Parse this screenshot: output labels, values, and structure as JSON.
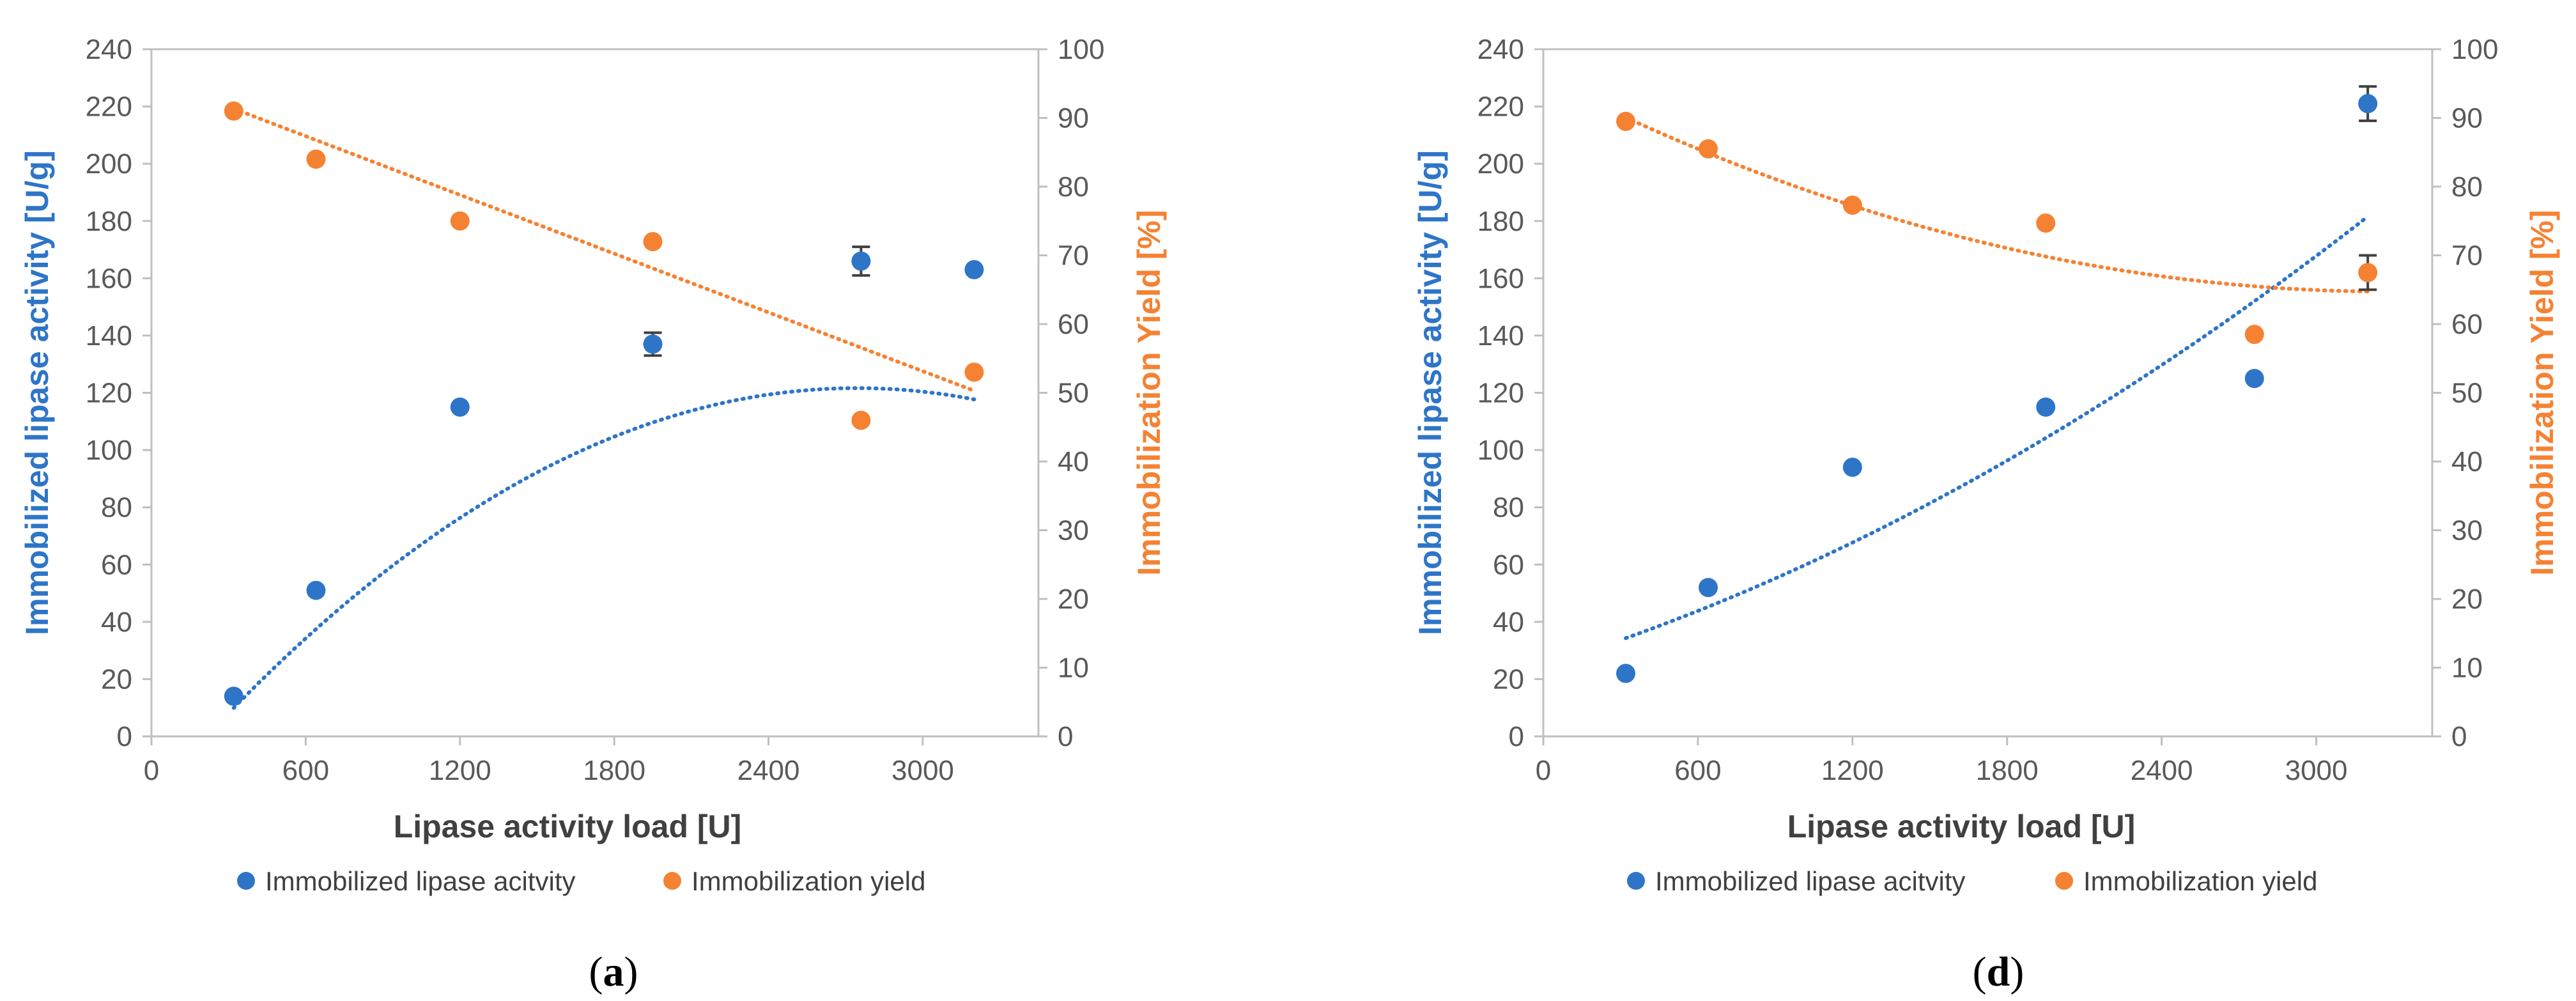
{
  "colors": {
    "blue": "#2E75C8",
    "orange": "#F58233",
    "axis": "#BFBFBF",
    "error": "#404040",
    "text": "#595959"
  },
  "chart_data": [
    {
      "type": "scatter",
      "panel_label": "a",
      "xlabel": "Lipase activity load [U]",
      "ylabel": "Immobilized lipase activity [U/g]",
      "y2label": "Immobilization Yield [%]",
      "xlim": [
        0,
        3450
      ],
      "ylim": [
        0,
        240
      ],
      "y2lim": [
        0,
        100
      ],
      "xticks": [
        0,
        600,
        1200,
        1800,
        2400,
        3000
      ],
      "yticks": [
        0,
        20,
        40,
        60,
        80,
        100,
        120,
        140,
        160,
        180,
        200,
        220,
        240
      ],
      "y2ticks": [
        0,
        10,
        20,
        30,
        40,
        50,
        60,
        70,
        80,
        90,
        100
      ],
      "legend": [
        "Immobilized lipase acitvity",
        "Immobilization yield"
      ],
      "series": [
        {
          "name": "Immobilized lipase acitvity",
          "axis": "left",
          "x": [
            320,
            640,
            1200,
            1950,
            2760,
            3200
          ],
          "y": [
            14,
            51,
            115,
            137,
            166,
            163
          ],
          "err": [
            0,
            0,
            0,
            4,
            5,
            0
          ],
          "trend": {
            "kind": "poly2",
            "coef": [
              -1.9e-05,
              0.1043,
              -21.5
            ],
            "from": 320,
            "to": 3200
          }
        },
        {
          "name": "Immobilization yield",
          "axis": "right",
          "x": [
            320,
            640,
            1200,
            1950,
            2760,
            3200
          ],
          "y": [
            91,
            84,
            75,
            72,
            46,
            53
          ],
          "err": [
            0,
            0,
            0,
            0,
            0,
            0
          ],
          "trend": {
            "kind": "linear",
            "coef": [
              -0.01425,
              95.9
            ],
            "from": 320,
            "to": 3200
          }
        }
      ]
    },
    {
      "type": "scatter",
      "panel_label": "d",
      "xlabel": "Lipase activity load [U]",
      "ylabel": "Immobilized lipase activity [U/g]",
      "y2label": "Immobilization Yield [%]",
      "xlim": [
        0,
        3450
      ],
      "ylim": [
        0,
        240
      ],
      "y2lim": [
        0,
        100
      ],
      "xticks": [
        0,
        600,
        1200,
        1800,
        2400,
        3000
      ],
      "yticks": [
        0,
        20,
        40,
        60,
        80,
        100,
        120,
        140,
        160,
        180,
        200,
        220,
        240
      ],
      "y2ticks": [
        0,
        10,
        20,
        30,
        40,
        50,
        60,
        70,
        80,
        90,
        100
      ],
      "legend": [
        "Immobilized lipase acitvity",
        "Immobilization yield"
      ],
      "series": [
        {
          "name": "Immobilized lipase acitvity",
          "axis": "left",
          "x": [
            320,
            640,
            1200,
            1950,
            2760,
            3200
          ],
          "y": [
            22,
            52,
            94,
            115,
            125,
            221
          ],
          "err": [
            0,
            0,
            0,
            0,
            0,
            6
          ],
          "trend": {
            "kind": "poly2",
            "coef": [
              6.6e-06,
              0.0279,
              24.7
            ],
            "from": 320,
            "to": 3200
          }
        },
        {
          "name": "Immobilization yield",
          "axis": "right",
          "x": [
            320,
            640,
            1200,
            1950,
            2760,
            3200
          ],
          "y": [
            89.5,
            85.5,
            77.3,
            74.7,
            58.5,
            67.5
          ],
          "err": [
            0,
            0,
            0,
            0,
            0,
            2.5
          ],
          "trend": {
            "kind": "poly2",
            "coef": [
              2.9e-06,
              -0.019,
              95.85
            ],
            "from": 320,
            "to": 3200
          }
        }
      ]
    }
  ]
}
